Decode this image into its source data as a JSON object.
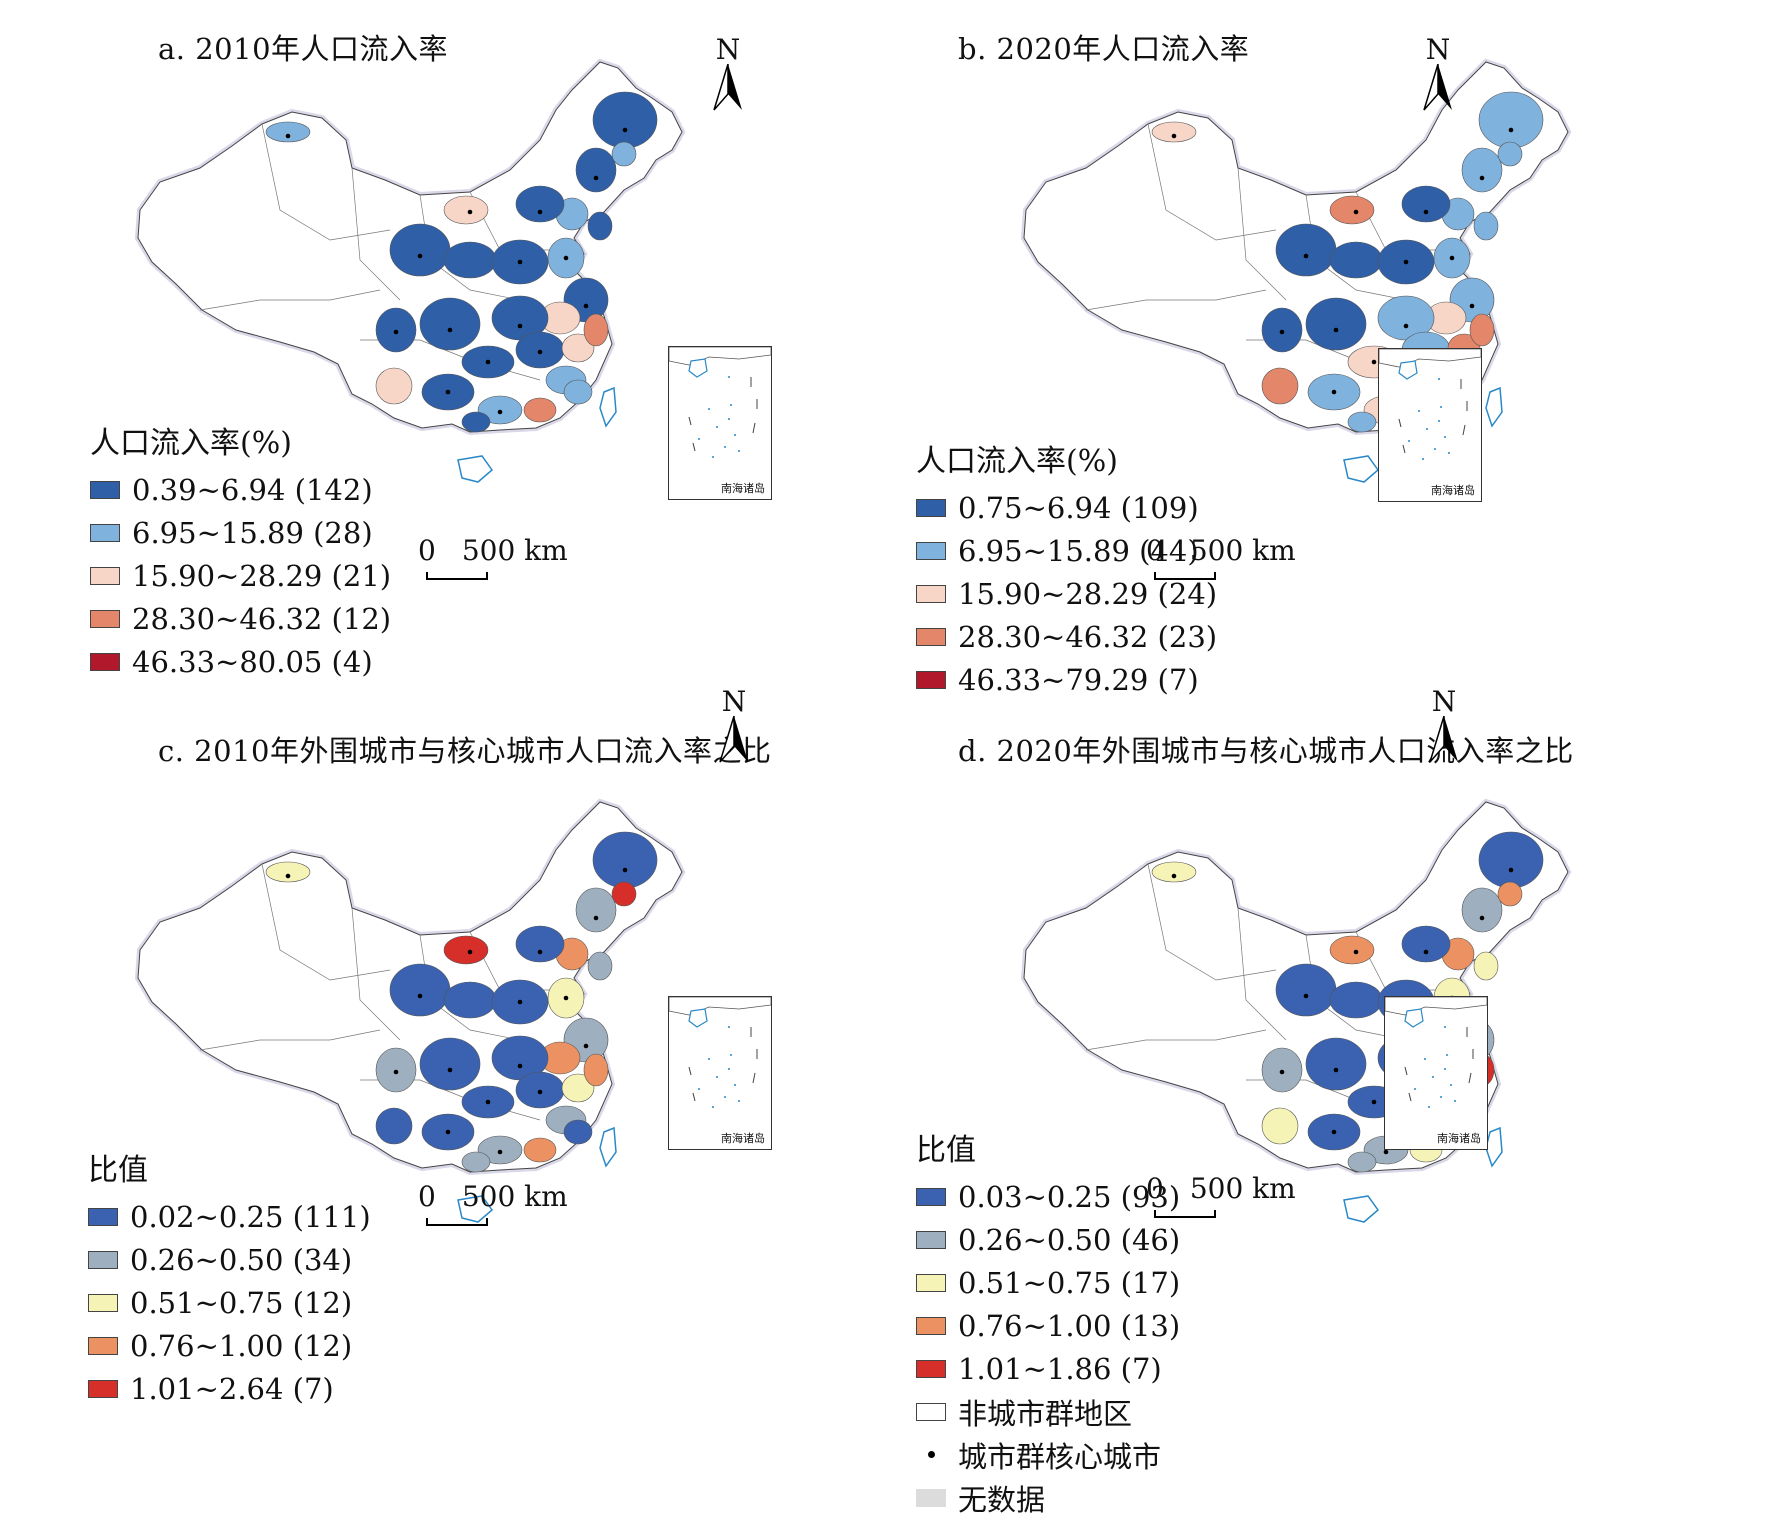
{
  "panels": [
    {
      "title": "a. 2010年人口流入率",
      "legend_title": "人口流入率(%)",
      "legend": [
        {
          "label": "0.39~6.94 (142)",
          "color": "#2f5fa6"
        },
        {
          "label": "6.95~15.89 (28)",
          "color": "#7fb2dc"
        },
        {
          "label": "15.90~28.29 (21)",
          "color": "#f7d6c8"
        },
        {
          "label": "28.30~46.32 (12)",
          "color": "#e3866a"
        },
        {
          "label": "46.33~80.05 (4)",
          "color": "#b2182b"
        }
      ]
    },
    {
      "title": "b. 2020年人口流入率",
      "legend_title": "人口流入率(%)",
      "legend": [
        {
          "label": "0.75~6.94 (109)",
          "color": "#2f5fa6"
        },
        {
          "label": "6.95~15.89 (44)",
          "color": "#7fb2dc"
        },
        {
          "label": "15.90~28.29 (24)",
          "color": "#f7d6c8"
        },
        {
          "label": "28.30~46.32 (23)",
          "color": "#e3866a"
        },
        {
          "label": "46.33~79.29 (7)",
          "color": "#b2182b"
        }
      ]
    },
    {
      "title": "c. 2010年外围城市与核心城市人口流入率之比",
      "legend_title": "比值",
      "legend": [
        {
          "label": "0.02~0.25 (111)",
          "color": "#3a62b0"
        },
        {
          "label": "0.26~0.50 (34)",
          "color": "#9eb0c0"
        },
        {
          "label": "0.51~0.75 (12)",
          "color": "#f6f3b6"
        },
        {
          "label": "0.76~1.00 (12)",
          "color": "#ec9262"
        },
        {
          "label": "1.01~2.64 (7)",
          "color": "#d62f2a"
        }
      ]
    },
    {
      "title": "d. 2020年外围城市与核心城市人口流入率之比",
      "legend_title": "比值",
      "legend": [
        {
          "label": "0.03~0.25 (93)",
          "color": "#3a62b0"
        },
        {
          "label": "0.26~0.50 (46)",
          "color": "#9eb0c0"
        },
        {
          "label": "0.51~0.75 (17)",
          "color": "#f6f3b6"
        },
        {
          "label": "0.76~1.00 (13)",
          "color": "#ec9262"
        },
        {
          "label": "1.01~1.86 (7)",
          "color": "#d62f2a"
        }
      ]
    }
  ],
  "shared_legend": [
    {
      "label": "非城市群地区",
      "kind": "box",
      "color": "#ffffff"
    },
    {
      "label": "城市群核心城市",
      "kind": "dot",
      "color": "#000000"
    },
    {
      "label": "无数据",
      "kind": "box",
      "color": "#dcdcdc"
    }
  ],
  "scale_bar": {
    "zero": "0",
    "distance": "500 km"
  },
  "north_label": "N",
  "inset_label": "南海诸岛"
}
